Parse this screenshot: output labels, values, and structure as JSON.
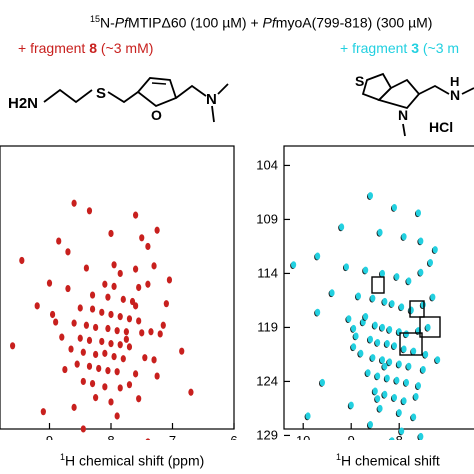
{
  "header": {
    "iso_sup": "15",
    "iso_rest": "N-",
    "pf1": "Pf",
    "protein": "MTIPΔ60 (100 µM) + ",
    "pf2": "Pf",
    "peptide": "myoA(799-818) (300 µM)"
  },
  "left_panel": {
    "fragment_prefix": "+ fragment ",
    "fragment_num": "8",
    "fragment_conc": " (~3 mM)",
    "structure": {
      "h2n": "H2N",
      "s": "S",
      "o": "O",
      "n": "N"
    },
    "axis_label_sup": "1",
    "axis_label_rest": "H chemical shift (ppm)",
    "color": "#c8201e"
  },
  "right_panel": {
    "fragment_prefix": "+ fragment ",
    "fragment_num": "3",
    "fragment_conc": " (~3 m",
    "structure": {
      "s": "S",
      "n1": "N",
      "n2": "N",
      "h": "H",
      "hcl": "HCl"
    },
    "axis_label_sup": "1",
    "axis_label_rest": "H chemical shift",
    "color": "#22d0e0"
  },
  "chart_data": [
    {
      "type": "scatter",
      "title": "",
      "xlabel": "1H chemical shift (ppm)",
      "x_ticks": [
        "9",
        "8",
        "7",
        "6"
      ],
      "y_ticks": [],
      "series": [
        {
          "points": [
            [
              8.6,
              107.5
            ],
            [
              8.35,
              108.2
            ],
            [
              7.6,
              108.6
            ],
            [
              8.0,
              110.3
            ],
            [
              7.5,
              110.7
            ],
            [
              7.4,
              111.5
            ],
            [
              8.7,
              112.0
            ],
            [
              9.45,
              112.8
            ],
            [
              8.4,
              113.5
            ],
            [
              7.95,
              113.2
            ],
            [
              7.6,
              113.6
            ],
            [
              7.3,
              113.3
            ],
            [
              7.85,
              114.0
            ],
            [
              8.1,
              115.0
            ],
            [
              7.95,
              115.2
            ],
            [
              7.55,
              115.3
            ],
            [
              7.4,
              115.0
            ],
            [
              9.0,
              114.9
            ],
            [
              8.7,
              115.4
            ],
            [
              8.3,
              116.0
            ],
            [
              8.05,
              116.2
            ],
            [
              7.8,
              116.4
            ],
            [
              7.65,
              116.6
            ],
            [
              7.1,
              116.8
            ],
            [
              9.2,
              117.0
            ],
            [
              8.5,
              117.2
            ],
            [
              8.3,
              117.3
            ],
            [
              8.15,
              117.6
            ],
            [
              8.0,
              117.8
            ],
            [
              7.85,
              118.0
            ],
            [
              7.7,
              118.2
            ],
            [
              7.55,
              118.4
            ],
            [
              8.9,
              118.5
            ],
            [
              8.6,
              118.6
            ],
            [
              8.4,
              118.8
            ],
            [
              8.25,
              119.0
            ],
            [
              8.05,
              119.1
            ],
            [
              7.9,
              119.3
            ],
            [
              7.75,
              119.4
            ],
            [
              7.5,
              119.5
            ],
            [
              7.35,
              119.4
            ],
            [
              7.2,
              119.6
            ],
            [
              8.8,
              119.9
            ],
            [
              8.5,
              120.0
            ],
            [
              8.35,
              120.2
            ],
            [
              8.15,
              120.3
            ],
            [
              8.0,
              120.5
            ],
            [
              7.85,
              120.6
            ],
            [
              7.7,
              120.8
            ],
            [
              9.6,
              120.7
            ],
            [
              8.65,
              121.0
            ],
            [
              8.45,
              121.3
            ],
            [
              8.25,
              121.5
            ],
            [
              8.1,
              121.4
            ],
            [
              7.95,
              121.7
            ],
            [
              7.8,
              121.9
            ],
            [
              7.45,
              121.8
            ],
            [
              7.3,
              122.0
            ],
            [
              8.55,
              122.4
            ],
            [
              8.35,
              122.6
            ],
            [
              8.2,
              122.8
            ],
            [
              8.05,
              123.0
            ],
            [
              7.9,
              123.1
            ],
            [
              7.6,
              123.3
            ],
            [
              7.25,
              123.5
            ],
            [
              8.45,
              124.0
            ],
            [
              8.3,
              124.2
            ],
            [
              8.1,
              124.5
            ],
            [
              7.85,
              124.6
            ],
            [
              7.7,
              124.3
            ],
            [
              8.25,
              125.5
            ],
            [
              8.0,
              125.9
            ],
            [
              7.55,
              125.6
            ],
            [
              8.6,
              126.4
            ],
            [
              9.1,
              126.8
            ],
            [
              7.9,
              127.2
            ],
            [
              8.45,
              128.4
            ],
            [
              7.4,
              129.6
            ],
            [
              8.05,
              130.3
            ],
            [
              7.75,
              120.1
            ],
            [
              8.95,
              117.8
            ],
            [
              7.15,
              118.8
            ],
            [
              8.75,
              122.9
            ],
            [
              7.6,
              117.0
            ],
            [
              6.85,
              121.2
            ],
            [
              7.05,
              114.6
            ],
            [
              8.85,
              111.0
            ],
            [
              7.25,
              110.0
            ],
            [
              6.7,
              125.0
            ]
          ]
        }
      ]
    },
    {
      "type": "scatter",
      "title": "",
      "xlabel": "1H chemical shift",
      "x_ticks": [
        "10",
        "9",
        "8"
      ],
      "y_ticks": [
        "104",
        "109",
        "114",
        "119",
        "124",
        "129"
      ],
      "series": [
        {
          "points": [
            [
              8.6,
              106.8
            ],
            [
              8.1,
              107.9
            ],
            [
              7.6,
              108.4
            ],
            [
              9.2,
              109.7
            ],
            [
              8.4,
              110.2
            ],
            [
              7.9,
              110.6
            ],
            [
              7.55,
              111.0
            ],
            [
              10.2,
              113.2
            ],
            [
              9.7,
              112.4
            ],
            [
              9.1,
              113.4
            ],
            [
              8.7,
              113.7
            ],
            [
              8.35,
              114.0
            ],
            [
              8.05,
              114.3
            ],
            [
              7.8,
              114.7
            ],
            [
              7.55,
              113.9
            ],
            [
              7.35,
              113.0
            ],
            [
              7.25,
              111.8
            ],
            [
              9.4,
              115.8
            ],
            [
              8.85,
              116.1
            ],
            [
              8.55,
              116.3
            ],
            [
              8.3,
              116.6
            ],
            [
              8.15,
              116.8
            ],
            [
              7.95,
              117.1
            ],
            [
              7.75,
              117.4
            ],
            [
              7.5,
              116.9
            ],
            [
              9.7,
              117.6
            ],
            [
              9.05,
              118.2
            ],
            [
              8.75,
              118.5
            ],
            [
              8.5,
              118.8
            ],
            [
              8.35,
              119.0
            ],
            [
              8.2,
              119.2
            ],
            [
              8.0,
              119.4
            ],
            [
              7.85,
              119.6
            ],
            [
              7.6,
              119.3
            ],
            [
              7.4,
              119.0
            ],
            [
              8.9,
              119.8
            ],
            [
              8.6,
              120.1
            ],
            [
              8.45,
              120.4
            ],
            [
              8.25,
              120.5
            ],
            [
              8.1,
              120.7
            ],
            [
              7.9,
              121.0
            ],
            [
              7.7,
              121.2
            ],
            [
              7.45,
              121.5
            ],
            [
              8.8,
              121.4
            ],
            [
              8.55,
              121.8
            ],
            [
              8.35,
              122.0
            ],
            [
              8.2,
              122.2
            ],
            [
              8.0,
              122.4
            ],
            [
              7.8,
              122.6
            ],
            [
              7.5,
              122.9
            ],
            [
              8.65,
              123.2
            ],
            [
              8.45,
              123.5
            ],
            [
              8.25,
              123.7
            ],
            [
              8.05,
              123.9
            ],
            [
              7.85,
              124.1
            ],
            [
              7.6,
              124.4
            ],
            [
              8.5,
              124.9
            ],
            [
              8.3,
              125.2
            ],
            [
              8.1,
              125.5
            ],
            [
              7.9,
              125.8
            ],
            [
              7.65,
              125.4
            ],
            [
              9.0,
              126.2
            ],
            [
              8.4,
              126.5
            ],
            [
              8.0,
              126.9
            ],
            [
              7.7,
              127.3
            ],
            [
              8.6,
              128.0
            ],
            [
              7.95,
              128.6
            ],
            [
              8.15,
              129.5
            ],
            [
              7.55,
              129.1
            ],
            [
              9.9,
              127.2
            ],
            [
              9.6,
              124.1
            ],
            [
              8.95,
              120.8
            ],
            [
              8.7,
              118.0
            ],
            [
              7.3,
              116.2
            ],
            [
              7.2,
              122.0
            ],
            [
              8.95,
              119.1
            ],
            [
              8.3,
              122.6
            ],
            [
              8.45,
              125.6
            ]
          ]
        }
      ]
    }
  ]
}
